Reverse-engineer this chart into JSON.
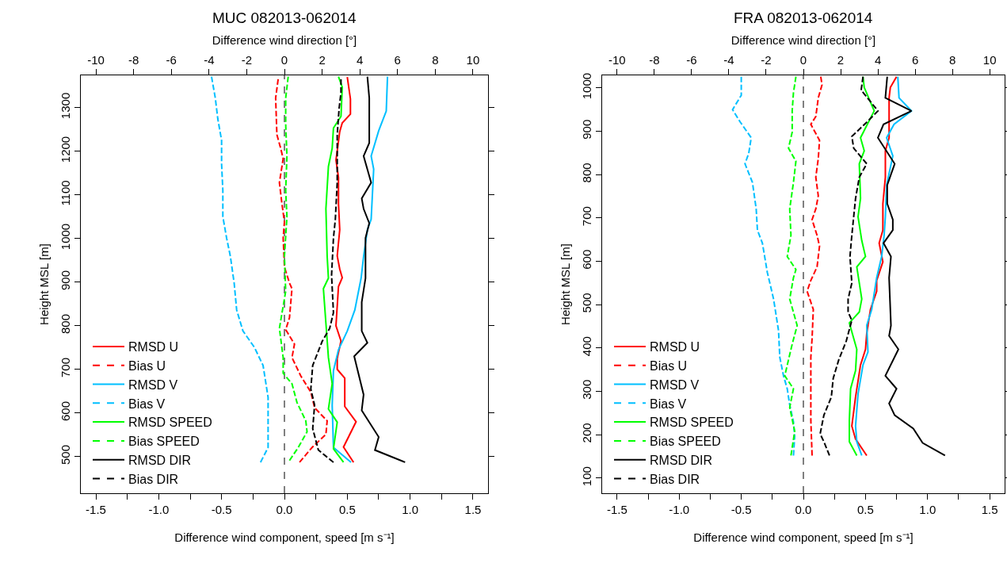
{
  "chart_data": [
    {
      "type": "line",
      "title": "MUC 082013-062014",
      "x2label": "Difference wind direction [°]",
      "xlabel": "Difference wind component, speed [m s⁻¹]",
      "ylabel": "Height MSL [m]",
      "xlim": [
        -1.62,
        1.62
      ],
      "xticks": [
        -1.5,
        {
          "value": -1.25,
          "label": null
        },
        {
          "value": -1,
          "label": "-1.0"
        },
        {
          "value": -0.75,
          "label": null
        },
        -0.5,
        {
          "value": -0.25,
          "label": null
        },
        {
          "value": 0,
          "label": "0.0"
        },
        {
          "value": 0.25,
          "label": null
        },
        0.5,
        {
          "value": 0.75,
          "label": null
        },
        {
          "value": 1,
          "label": "1.0"
        },
        {
          "value": 1.25,
          "label": null
        },
        1.5
      ],
      "x2lim": [
        -10.8,
        10.8
      ],
      "x2ticks": [
        -10,
        -8,
        -6,
        -4,
        -2,
        0,
        2,
        4,
        6,
        8,
        10
      ],
      "ylim": [
        416,
        1374
      ],
      "yticks": [
        500,
        600,
        700,
        800,
        900,
        1000,
        1100,
        1200,
        1300
      ],
      "legend": "bottom left",
      "grid": false,
      "ref_lines": [
        {
          "axis": "x",
          "value": 0,
          "color": "#000000",
          "line_style": "dashed"
        }
      ],
      "series": [
        {
          "name": "RMSD U",
          "color": "#ff0000",
          "line_style": "solid",
          "x": [
            0.5,
            0.525,
            0.525,
            0.46,
            0.44,
            0.42,
            0.41,
            0.43,
            0.43,
            0.44,
            0.42,
            0.44,
            0.46,
            0.43,
            0.41,
            0.45,
            0.42,
            0.42,
            0.48,
            0.48,
            0.57,
            0.47,
            0.55
          ],
          "values": [
            1370,
            1320,
            1285,
            1265,
            1245,
            1200,
            1180,
            1140,
            1080,
            1020,
            960,
            930,
            910,
            890,
            800,
            765,
            725,
            700,
            680,
            615,
            580,
            522,
            487
          ]
        },
        {
          "name": "Bias U",
          "color": "#ff0000",
          "line_style": "dashed",
          "x": [
            -0.05,
            -0.07,
            -0.06,
            -0.03,
            -0.01,
            -0.04,
            -0.02,
            0.0,
            -0.01,
            0.0,
            0.04,
            0.06,
            0.04,
            0.01,
            0.08,
            0.06,
            0.13,
            0.21,
            0.24,
            0.34,
            0.33,
            0.22,
            0.12
          ],
          "values": [
            1365,
            1322,
            1238,
            1207,
            1183,
            1128,
            1080,
            1038,
            1001,
            935,
            898,
            885,
            818,
            791,
            758,
            727,
            685,
            648,
            612,
            582,
            551,
            521,
            487
          ]
        },
        {
          "name": "RMSD V",
          "color": "#00bfff",
          "line_style": "solid",
          "x": [
            0.82,
            0.81,
            0.75,
            0.69,
            0.71,
            0.69,
            0.66,
            0.63,
            0.61,
            0.56,
            0.5,
            0.43,
            0.39,
            0.38,
            0.39,
            0.53
          ],
          "values": [
            1371,
            1292,
            1247,
            1189,
            1159,
            1044,
            1020,
            959,
            909,
            836,
            788,
            745,
            697,
            618,
            521,
            487
          ]
        },
        {
          "name": "Bias V",
          "color": "#00bfff",
          "line_style": "dashed",
          "x": [
            -0.58,
            -0.55,
            -0.53,
            -0.5,
            -0.5,
            -0.49,
            -0.49,
            -0.46,
            -0.43,
            -0.4,
            -0.38,
            -0.33,
            -0.24,
            -0.17,
            -0.13,
            -0.13,
            -0.13,
            -0.19
          ],
          "values": [
            1371,
            1322,
            1274,
            1225,
            1171,
            1110,
            1050,
            1001,
            959,
            898,
            836,
            788,
            751,
            709,
            636,
            570,
            521,
            487
          ]
        },
        {
          "name": "RMSD SPEED",
          "color": "#00ff00",
          "line_style": "solid",
          "x": [
            0.43,
            0.46,
            0.45,
            0.39,
            0.38,
            0.35,
            0.33,
            0.34,
            0.35,
            0.31,
            0.33,
            0.35,
            0.38,
            0.35,
            0.42,
            0.39,
            0.47
          ],
          "values": [
            1371,
            1347,
            1280,
            1253,
            1207,
            1165,
            1068,
            959,
            909,
            885,
            806,
            727,
            667,
            609,
            579,
            518,
            487
          ]
        },
        {
          "name": "Bias SPEED",
          "color": "#00ff00",
          "line_style": "dashed",
          "x": [
            0.03,
            0.01,
            0.01,
            0.02,
            0.01,
            0.02,
            0.0,
            0.01,
            -0.04,
            -0.01,
            -0.01,
            0.06,
            0.1,
            0.17,
            0.18,
            0.11,
            0.04
          ],
          "values": [
            1371,
            1322,
            1262,
            1189,
            1110,
            1050,
            959,
            879,
            794,
            727,
            691,
            667,
            624,
            582,
            557,
            521,
            491
          ]
        },
        {
          "name": "RMSD DIR",
          "color": "#000000",
          "line_style": "solid",
          "axis": "x2",
          "x": [
            4.4,
            4.5,
            4.5,
            4.2,
            4.6,
            4.1,
            4.2,
            4.5,
            4.3,
            4.3,
            4.1,
            4.1,
            4.4,
            3.7,
            4.2,
            4.1,
            5.0,
            4.8,
            6.4
          ],
          "values": [
            1371,
            1322,
            1219,
            1189,
            1128,
            1092,
            1068,
            1035,
            1001,
            909,
            854,
            788,
            761,
            730,
            642,
            606,
            545,
            515,
            487
          ]
        },
        {
          "name": "Bias DIR",
          "color": "#000000",
          "line_style": "dashed",
          "axis": "x2",
          "x": [
            3.0,
            3.0,
            2.9,
            2.8,
            2.8,
            2.7,
            2.6,
            2.5,
            2.6,
            2.4,
            2.0,
            1.5,
            1.4,
            1.6,
            1.5,
            1.8,
            2.6
          ],
          "values": [
            1365,
            1335,
            1298,
            1238,
            1128,
            1044,
            1001,
            916,
            830,
            794,
            764,
            709,
            655,
            618,
            564,
            515,
            487
          ]
        }
      ]
    },
    {
      "type": "line",
      "title": "FRA 082013-062014",
      "x2label": "Difference wind direction [°]",
      "xlabel": "Difference wind component, speed [m s⁻¹]",
      "ylabel": "Height MSL [m]",
      "xlim": [
        -1.62,
        1.62
      ],
      "xticks": [
        -1.5,
        {
          "value": -1.25,
          "label": null
        },
        {
          "value": -1,
          "label": "-1.0"
        },
        {
          "value": -0.75,
          "label": null
        },
        -0.5,
        {
          "value": -0.25,
          "label": null
        },
        {
          "value": 0,
          "label": "0.0"
        },
        {
          "value": 0.25,
          "label": null
        },
        0.5,
        {
          "value": 0.75,
          "label": null
        },
        {
          "value": 1,
          "label": "1.0"
        },
        {
          "value": 1.25,
          "label": null
        },
        1.5
      ],
      "x2lim": [
        -10.8,
        10.8
      ],
      "x2ticks": [
        -10,
        -8,
        -6,
        -4,
        -2,
        0,
        2,
        4,
        6,
        8,
        10
      ],
      "ylim": [
        65,
        1029
      ],
      "yticks": [
        100,
        200,
        300,
        400,
        500,
        600,
        700,
        800,
        900,
        1000
      ],
      "legend": "bottom left",
      "grid": false,
      "ref_lines": [
        {
          "axis": "x",
          "value": 0,
          "color": "#000000",
          "line_style": "dashed"
        }
      ],
      "series": [
        {
          "name": "RMSD U",
          "color": "#ff0000",
          "line_style": "solid",
          "x": [
            0.75,
            0.7,
            0.69,
            0.69,
            0.66,
            0.66,
            0.64,
            0.64,
            0.61,
            0.64,
            0.59,
            0.59,
            0.54,
            0.51,
            0.5,
            0.46,
            0.42,
            0.39,
            0.42,
            0.51
          ],
          "values": [
            1026,
            1001,
            977,
            885,
            855,
            794,
            733,
            672,
            642,
            599,
            556,
            531,
            489,
            434,
            397,
            361,
            287,
            220,
            190,
            152
          ]
        },
        {
          "name": "Bias U",
          "color": "#ff0000",
          "line_style": "dashed",
          "x": [
            0.14,
            0.15,
            0.12,
            0.1,
            0.06,
            0.13,
            0.12,
            0.1,
            0.12,
            0.1,
            0.07,
            0.11,
            0.13,
            0.11,
            0.06,
            0.03,
            0.08,
            0.07,
            0.06,
            0.06,
            0.06,
            0.07
          ],
          "values": [
            1026,
            1007,
            977,
            934,
            916,
            879,
            837,
            794,
            751,
            721,
            696,
            660,
            635,
            587,
            556,
            531,
            489,
            422,
            379,
            306,
            233,
            152
          ]
        },
        {
          "name": "RMSD V",
          "color": "#00bfff",
          "line_style": "solid",
          "x": [
            0.76,
            0.77,
            0.87,
            0.73,
            0.67,
            0.72,
            0.67,
            0.66,
            0.65,
            0.63,
            0.59,
            0.55,
            0.51,
            0.52,
            0.48,
            0.44,
            0.42,
            0.43,
            0.47
          ],
          "values": [
            1026,
            977,
            947,
            916,
            885,
            843,
            776,
            703,
            660,
            611,
            562,
            489,
            452,
            391,
            361,
            294,
            220,
            184,
            152
          ]
        },
        {
          "name": "Bias V",
          "color": "#00bfff",
          "line_style": "dashed",
          "x": [
            -0.5,
            -0.5,
            -0.57,
            -0.51,
            -0.42,
            -0.44,
            -0.47,
            -0.41,
            -0.38,
            -0.37,
            -0.33,
            -0.29,
            -0.27,
            -0.24,
            -0.2,
            -0.19,
            -0.16,
            -0.13,
            -0.11,
            -0.08,
            -0.07,
            -0.08
          ],
          "values": [
            1026,
            983,
            950,
            922,
            885,
            849,
            825,
            782,
            721,
            672,
            642,
            574,
            550,
            513,
            440,
            379,
            336,
            306,
            269,
            230,
            196,
            152
          ]
        },
        {
          "name": "RMSD SPEED",
          "color": "#00ff00",
          "line_style": "solid",
          "x": [
            0.48,
            0.49,
            0.57,
            0.46,
            0.49,
            0.45,
            0.46,
            0.44,
            0.47,
            0.5,
            0.43,
            0.45,
            0.47,
            0.45,
            0.37,
            0.43,
            0.42,
            0.38,
            0.37,
            0.37,
            0.43
          ],
          "values": [
            1026,
            1001,
            947,
            885,
            855,
            825,
            745,
            703,
            648,
            611,
            587,
            550,
            513,
            483,
            458,
            397,
            348,
            306,
            233,
            184,
            152
          ]
        },
        {
          "name": "Bias SPEED",
          "color": "#00ff00",
          "line_style": "dashed",
          "x": [
            -0.06,
            -0.08,
            -0.09,
            -0.09,
            -0.12,
            -0.06,
            -0.08,
            -0.11,
            -0.1,
            -0.13,
            -0.06,
            -0.08,
            -0.11,
            -0.05,
            -0.09,
            -0.15,
            -0.08,
            -0.11,
            -0.07,
            -0.1
          ],
          "values": [
            1026,
            989,
            947,
            898,
            861,
            831,
            782,
            721,
            660,
            611,
            581,
            562,
            513,
            452,
            409,
            336,
            306,
            263,
            208,
            152
          ]
        },
        {
          "name": "RMSD DIR",
          "color": "#000000",
          "line_style": "solid",
          "axis": "x2",
          "x": [
            4.5,
            4.4,
            5.8,
            4.3,
            4.0,
            4.9,
            4.5,
            4.5,
            4.8,
            4.8,
            4.3,
            4.7,
            4.6,
            4.7,
            4.6,
            5.1,
            4.4,
            5.0,
            4.6,
            4.9,
            5.9,
            6.4,
            7.6
          ],
          "values": [
            1026,
            977,
            947,
            916,
            885,
            825,
            776,
            733,
            696,
            672,
            642,
            611,
            562,
            452,
            428,
            397,
            336,
            306,
            272,
            245,
            214,
            181,
            152
          ]
        },
        {
          "name": "Bias DIR",
          "color": "#000000",
          "line_style": "dashed",
          "axis": "x2",
          "x": [
            3.2,
            3.1,
            4.0,
            3.5,
            2.6,
            2.7,
            3.4,
            3.0,
            2.8,
            2.7,
            2.6,
            2.5,
            2.6,
            2.4,
            2.4,
            2.6,
            2.3,
            1.9,
            1.6,
            1.5,
            1.1,
            0.9,
            1.1,
            1.4
          ],
          "values": [
            1026,
            995,
            947,
            925,
            888,
            861,
            825,
            794,
            745,
            703,
            660,
            611,
            550,
            513,
            483,
            464,
            416,
            373,
            330,
            287,
            245,
            202,
            184,
            152
          ]
        }
      ]
    }
  ]
}
